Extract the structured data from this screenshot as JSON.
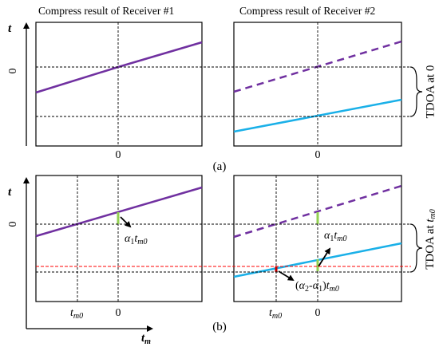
{
  "panel_a": {
    "left_title": "Compress result of Receiver #1",
    "right_title": "Compress result of Receiver #2",
    "y_axis_symbol": "t",
    "y_zero_label": "0",
    "x_zero_left": "0",
    "x_zero_right": "0",
    "bracket_label": "TDOA at 0",
    "caption": "(a)"
  },
  "panel_b": {
    "y_axis_symbol": "t",
    "y_zero_label": "0",
    "x_zero_left": "0",
    "x_zero_right": "0",
    "x_axis_symbol": "t",
    "x_axis_subscript": "m",
    "tm0_left": {
      "t": "t",
      "sub": "m0"
    },
    "tm0_right": {
      "t": "t",
      "sub": "m0"
    },
    "annot_alpha1_left": {
      "alpha": "α",
      "sub1": "1",
      "t": "t",
      "sub2": "m0"
    },
    "annot_alpha1_right": {
      "alpha": "α",
      "sub1": "1",
      "t": "t",
      "sub2": "m0"
    },
    "annot_diff": {
      "open": "(",
      "a2": "α",
      "s2": "2",
      "minus": "-",
      "a1": "α",
      "s1": "1",
      "close": ")",
      "t": "t",
      "sub": "m0"
    },
    "bracket_label": "TDOA at ",
    "bracket_label_t": "t",
    "bracket_label_sub": "m0",
    "caption": "(b)"
  },
  "colors": {
    "receiver1_line": "#7030a0",
    "receiver2_line": "#1ab0e8",
    "tdoa_marker": "#92d050",
    "red_dashed": "#ff0000",
    "red_marker": "#c00000"
  }
}
